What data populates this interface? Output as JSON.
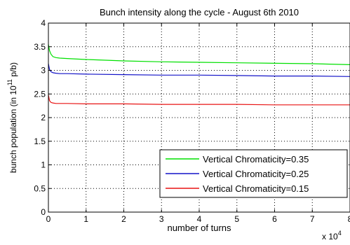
{
  "chart_data": {
    "type": "line",
    "title": "Bunch intensity along the cycle  - August 6th 2010",
    "xlabel": "number of turns",
    "ylabel_prefix": "bunch population (in 10",
    "ylabel_exp": "11",
    "ylabel_suffix": " p/b)",
    "x_multiplier_base": "x 10",
    "x_multiplier_exp": "4",
    "xlim": [
      0,
      80000
    ],
    "ylim": [
      0,
      4
    ],
    "x_ticks": [
      0,
      10000,
      20000,
      30000,
      40000,
      50000,
      60000,
      70000,
      80000
    ],
    "x_tick_labels": [
      "0",
      "1",
      "2",
      "3",
      "4",
      "5",
      "6",
      "7",
      "8"
    ],
    "y_ticks": [
      0,
      0.5,
      1,
      1.5,
      2,
      2.5,
      3,
      3.5,
      4
    ],
    "y_tick_labels": [
      "0",
      "0.5",
      "1",
      "1.5",
      "2",
      "2.5",
      "3",
      "3.5",
      "4"
    ],
    "grid": true,
    "legend_position": "center-right",
    "series": [
      {
        "name": "Vertical Chromaticity=0.35",
        "color": "#00e000",
        "x": [
          0,
          300,
          700,
          1200,
          2000,
          3000,
          5000,
          10000,
          20000,
          30000,
          40000,
          50000,
          60000,
          70000,
          80000
        ],
        "y": [
          3.55,
          3.42,
          3.34,
          3.29,
          3.27,
          3.26,
          3.25,
          3.23,
          3.2,
          3.18,
          3.17,
          3.16,
          3.15,
          3.14,
          3.12
        ]
      },
      {
        "name": "Vertical Chromaticity=0.25",
        "color": "#1414c8",
        "x": [
          0,
          300,
          700,
          1200,
          2000,
          3000,
          5000,
          10000,
          20000,
          30000,
          40000,
          50000,
          60000,
          70000,
          80000
        ],
        "y": [
          3.14,
          3.02,
          2.97,
          2.95,
          2.94,
          2.93,
          2.93,
          2.92,
          2.91,
          2.9,
          2.9,
          2.89,
          2.88,
          2.88,
          2.87
        ]
      },
      {
        "name": "Vertical Chromaticity=0.15",
        "color": "#e81414",
        "x": [
          0,
          300,
          700,
          1200,
          2000,
          3000,
          5000,
          10000,
          20000,
          30000,
          40000,
          50000,
          60000,
          70000,
          80000
        ],
        "y": [
          2.48,
          2.36,
          2.32,
          2.31,
          2.3,
          2.3,
          2.3,
          2.29,
          2.29,
          2.28,
          2.28,
          2.28,
          2.27,
          2.27,
          2.27
        ]
      }
    ]
  }
}
